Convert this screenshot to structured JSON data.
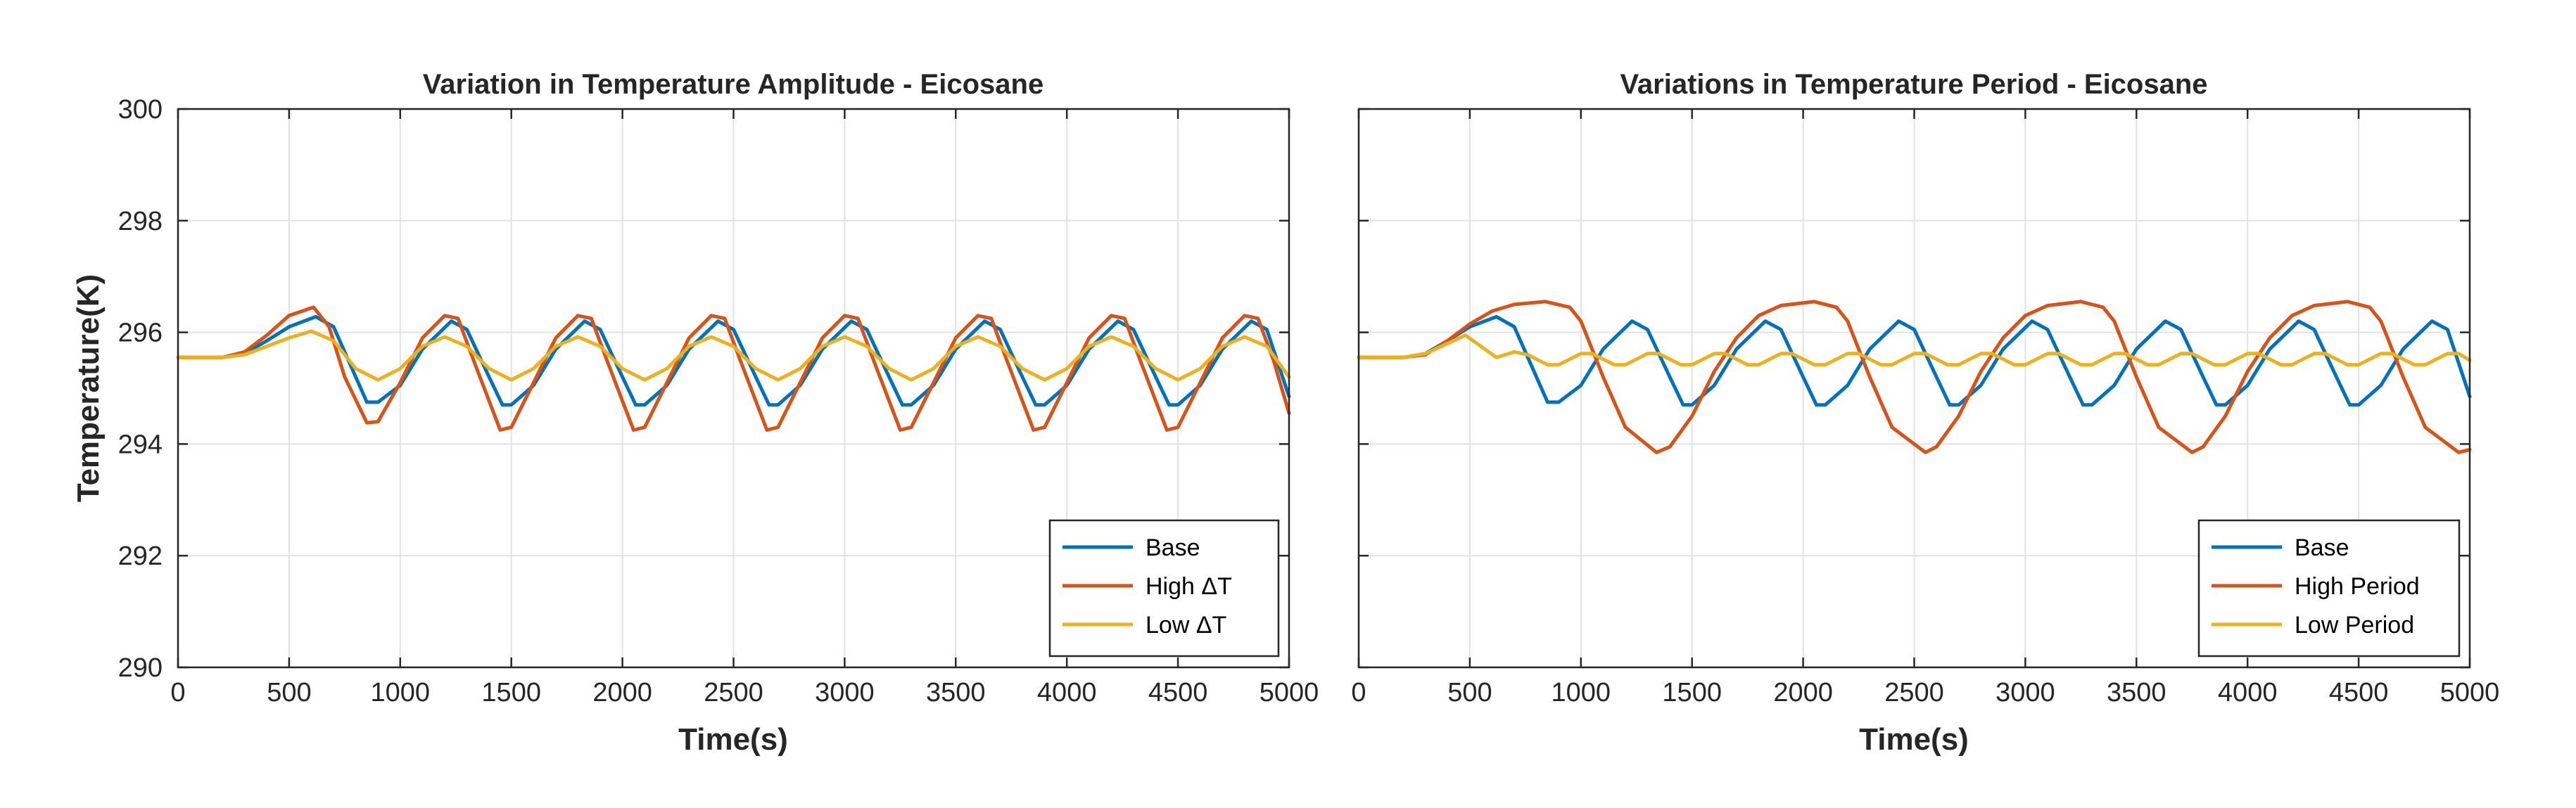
{
  "chart_data": [
    {
      "type": "line",
      "title": "Variation in Temperature Amplitude - Eicosane",
      "xlabel": "Time(s)",
      "ylabel": "Temperature(K)",
      "xlim": [
        0,
        5000
      ],
      "ylim": [
        290,
        300
      ],
      "xticks": [
        0,
        500,
        1000,
        1500,
        2000,
        2500,
        3000,
        3500,
        4000,
        4500,
        5000
      ],
      "yticks": [
        290,
        292,
        294,
        296,
        298,
        300
      ],
      "xtick_labels": [
        "0",
        "500",
        "1000",
        "1500",
        "2000",
        "2500",
        "3000",
        "3500",
        "4000",
        "4500",
        "5000"
      ],
      "ytick_labels": [
        "290",
        "292",
        "294",
        "296",
        "298",
        "300"
      ],
      "grid": true,
      "legend_location": "bottom-right",
      "series": [
        {
          "name": "Base",
          "color": "#0072BD",
          "x": [
            0,
            200,
            300,
            400,
            500,
            620,
            700,
            800,
            850,
            900,
            1000,
            1100,
            1230,
            1300,
            1400,
            1460,
            1500,
            1600,
            1700,
            1830,
            1900,
            2000,
            2060,
            2100,
            2200,
            2300,
            2430,
            2500,
            2600,
            2660,
            2700,
            2800,
            2900,
            3030,
            3100,
            3200,
            3260,
            3300,
            3400,
            3500,
            3630,
            3700,
            3800,
            3860,
            3900,
            4000,
            4100,
            4230,
            4300,
            4400,
            4460,
            4500,
            4600,
            4700,
            4830,
            4900,
            5000
          ],
          "y": [
            295.55,
            295.55,
            295.62,
            295.85,
            296.1,
            296.28,
            296.1,
            295.2,
            294.75,
            294.75,
            295.05,
            295.7,
            296.2,
            296.05,
            295.2,
            294.7,
            294.7,
            295.05,
            295.7,
            296.2,
            296.05,
            295.2,
            294.7,
            294.7,
            295.05,
            295.7,
            296.2,
            296.05,
            295.2,
            294.7,
            294.7,
            295.05,
            295.7,
            296.2,
            296.05,
            295.2,
            294.7,
            294.7,
            295.05,
            295.7,
            296.2,
            296.05,
            295.2,
            294.7,
            294.7,
            295.05,
            295.7,
            296.2,
            296.05,
            295.2,
            294.7,
            294.7,
            295.05,
            295.7,
            296.2,
            296.05,
            294.85
          ]
        },
        {
          "name": "High ΔT",
          "color": "#D95319",
          "x": [
            0,
            200,
            300,
            400,
            500,
            610,
            680,
            750,
            850,
            900,
            1000,
            1100,
            1200,
            1260,
            1330,
            1450,
            1500,
            1600,
            1700,
            1800,
            1860,
            1930,
            2050,
            2100,
            2200,
            2300,
            2400,
            2460,
            2530,
            2650,
            2700,
            2800,
            2900,
            3000,
            3060,
            3130,
            3250,
            3300,
            3400,
            3500,
            3600,
            3660,
            3730,
            3850,
            3900,
            4000,
            4100,
            4200,
            4260,
            4330,
            4450,
            4500,
            4600,
            4700,
            4800,
            4860,
            4930,
            5000
          ],
          "y": [
            295.55,
            295.55,
            295.65,
            295.95,
            296.3,
            296.45,
            296.1,
            295.2,
            294.38,
            294.4,
            295.1,
            295.9,
            296.3,
            296.25,
            295.5,
            294.25,
            294.3,
            295.1,
            295.9,
            296.3,
            296.25,
            295.5,
            294.25,
            294.3,
            295.1,
            295.9,
            296.3,
            296.25,
            295.5,
            294.25,
            294.3,
            295.1,
            295.9,
            296.3,
            296.25,
            295.5,
            294.25,
            294.3,
            295.1,
            295.9,
            296.3,
            296.25,
            295.5,
            294.25,
            294.3,
            295.1,
            295.9,
            296.3,
            296.25,
            295.5,
            294.25,
            294.3,
            295.1,
            295.9,
            296.3,
            296.25,
            295.5,
            294.55
          ]
        },
        {
          "name": "Low ΔT",
          "color": "#EDB120",
          "x": [
            0,
            200,
            300,
            400,
            500,
            600,
            700,
            800,
            900,
            1000,
            1100,
            1200,
            1300,
            1400,
            1500,
            1600,
            1700,
            1800,
            1900,
            2000,
            2100,
            2200,
            2300,
            2400,
            2500,
            2600,
            2700,
            2800,
            2900,
            3000,
            3100,
            3200,
            3300,
            3400,
            3500,
            3600,
            3700,
            3800,
            3900,
            4000,
            4100,
            4200,
            4300,
            4400,
            4500,
            4600,
            4700,
            4800,
            4900,
            5000
          ],
          "y": [
            295.55,
            295.55,
            295.6,
            295.75,
            295.9,
            296.02,
            295.85,
            295.35,
            295.15,
            295.35,
            295.75,
            295.92,
            295.75,
            295.35,
            295.15,
            295.35,
            295.75,
            295.92,
            295.75,
            295.35,
            295.15,
            295.35,
            295.75,
            295.92,
            295.75,
            295.35,
            295.15,
            295.35,
            295.75,
            295.92,
            295.75,
            295.35,
            295.15,
            295.35,
            295.75,
            295.92,
            295.75,
            295.35,
            295.15,
            295.35,
            295.75,
            295.92,
            295.75,
            295.35,
            295.15,
            295.35,
            295.75,
            295.92,
            295.75,
            295.2
          ]
        }
      ]
    },
    {
      "type": "line",
      "title": "Variations in Temperature Period - Eicosane",
      "xlabel": "Time(s)",
      "ylabel": "",
      "xlim": [
        0,
        5000
      ],
      "ylim": [
        290,
        300
      ],
      "xticks": [
        0,
        500,
        1000,
        1500,
        2000,
        2500,
        3000,
        3500,
        4000,
        4500,
        5000
      ],
      "yticks": [
        290,
        292,
        294,
        296,
        298,
        300
      ],
      "xtick_labels": [
        "0",
        "500",
        "1000",
        "1500",
        "2000",
        "2500",
        "3000",
        "3500",
        "4000",
        "4500",
        "5000"
      ],
      "ytick_labels": [],
      "grid": true,
      "legend_location": "bottom-right",
      "series": [
        {
          "name": "Base",
          "color": "#0072BD",
          "x": [
            0,
            200,
            300,
            400,
            500,
            620,
            700,
            800,
            850,
            900,
            1000,
            1100,
            1230,
            1300,
            1400,
            1460,
            1500,
            1600,
            1700,
            1830,
            1900,
            2000,
            2060,
            2100,
            2200,
            2300,
            2430,
            2500,
            2600,
            2660,
            2700,
            2800,
            2900,
            3030,
            3100,
            3200,
            3260,
            3300,
            3400,
            3500,
            3630,
            3700,
            3800,
            3860,
            3900,
            4000,
            4100,
            4230,
            4300,
            4400,
            4460,
            4500,
            4600,
            4700,
            4830,
            4900,
            5000
          ],
          "y": [
            295.55,
            295.55,
            295.62,
            295.85,
            296.1,
            296.28,
            296.1,
            295.2,
            294.75,
            294.75,
            295.05,
            295.7,
            296.2,
            296.05,
            295.2,
            294.7,
            294.7,
            295.05,
            295.7,
            296.2,
            296.05,
            295.2,
            294.7,
            294.7,
            295.05,
            295.7,
            296.2,
            296.05,
            295.2,
            294.7,
            294.7,
            295.05,
            295.7,
            296.2,
            296.05,
            295.2,
            294.7,
            294.7,
            295.05,
            295.7,
            296.2,
            296.05,
            295.2,
            294.7,
            294.7,
            295.05,
            295.7,
            296.2,
            296.05,
            295.2,
            294.7,
            294.7,
            295.05,
            295.7,
            296.2,
            296.05,
            294.85
          ]
        },
        {
          "name": "High Period",
          "color": "#D95319",
          "x": [
            0,
            200,
            300,
            400,
            500,
            600,
            700,
            840,
            950,
            1000,
            1100,
            1200,
            1340,
            1400,
            1500,
            1600,
            1700,
            1800,
            1900,
            2050,
            2150,
            2200,
            2300,
            2400,
            2550,
            2600,
            2700,
            2800,
            2900,
            3000,
            3100,
            3250,
            3350,
            3400,
            3500,
            3600,
            3750,
            3800,
            3900,
            4000,
            4100,
            4200,
            4300,
            4450,
            4550,
            4600,
            4700,
            4800,
            4950,
            5000
          ],
          "y": [
            295.55,
            295.55,
            295.6,
            295.85,
            296.15,
            296.38,
            296.5,
            296.55,
            296.45,
            296.2,
            295.2,
            294.3,
            293.85,
            293.95,
            294.5,
            295.3,
            295.9,
            296.3,
            296.48,
            296.55,
            296.45,
            296.2,
            295.2,
            294.3,
            293.85,
            293.95,
            294.5,
            295.3,
            295.9,
            296.3,
            296.48,
            296.55,
            296.45,
            296.2,
            295.2,
            294.3,
            293.85,
            293.95,
            294.5,
            295.3,
            295.9,
            296.3,
            296.48,
            296.55,
            296.45,
            296.2,
            295.2,
            294.3,
            293.85,
            293.9
          ]
        },
        {
          "name": "Low Period",
          "color": "#EDB120",
          "x": [
            0,
            200,
            300,
            400,
            480,
            550,
            620,
            700,
            760,
            850,
            900,
            1000,
            1050,
            1150,
            1200,
            1300,
            1350,
            1450,
            1500,
            1600,
            1650,
            1750,
            1800,
            1900,
            1950,
            2050,
            2100,
            2200,
            2250,
            2350,
            2400,
            2500,
            2550,
            2650,
            2700,
            2800,
            2850,
            2950,
            3000,
            3100,
            3150,
            3250,
            3300,
            3400,
            3450,
            3550,
            3600,
            3700,
            3750,
            3850,
            3900,
            4000,
            4050,
            4150,
            4200,
            4300,
            4350,
            4450,
            4500,
            4600,
            4650,
            4750,
            4800,
            4900,
            4950,
            5000
          ],
          "y": [
            295.55,
            295.55,
            295.62,
            295.8,
            295.95,
            295.75,
            295.55,
            295.65,
            295.6,
            295.42,
            295.42,
            295.62,
            295.62,
            295.42,
            295.42,
            295.62,
            295.62,
            295.42,
            295.42,
            295.62,
            295.62,
            295.42,
            295.42,
            295.62,
            295.62,
            295.42,
            295.42,
            295.62,
            295.62,
            295.42,
            295.42,
            295.62,
            295.62,
            295.42,
            295.42,
            295.62,
            295.62,
            295.42,
            295.42,
            295.62,
            295.62,
            295.42,
            295.42,
            295.62,
            295.62,
            295.42,
            295.42,
            295.62,
            295.62,
            295.42,
            295.42,
            295.62,
            295.62,
            295.42,
            295.42,
            295.62,
            295.62,
            295.42,
            295.42,
            295.62,
            295.62,
            295.42,
            295.42,
            295.62,
            295.62,
            295.5
          ]
        }
      ]
    }
  ]
}
